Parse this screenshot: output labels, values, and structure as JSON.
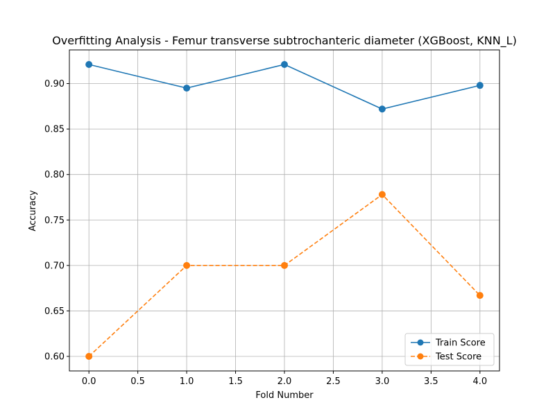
{
  "chart_data": {
    "type": "line",
    "title": "Overfitting Analysis - Femur transverse subtrochanteric diameter (XGBoost, KNN_L)",
    "xlabel": "Fold Number",
    "ylabel": "Accuracy",
    "x": [
      0,
      1,
      2,
      3,
      4
    ],
    "xlim": [
      -0.2,
      4.2
    ],
    "ylim": [
      0.584,
      0.937
    ],
    "xticks": [
      0.0,
      0.5,
      1.0,
      1.5,
      2.0,
      2.5,
      3.0,
      3.5,
      4.0
    ],
    "xtick_labels": [
      "0.0",
      "0.5",
      "1.0",
      "1.5",
      "2.0",
      "2.5",
      "3.0",
      "3.5",
      "4.0"
    ],
    "yticks": [
      0.6,
      0.65,
      0.7,
      0.75,
      0.8,
      0.85,
      0.9
    ],
    "ytick_labels": [
      "0.60",
      "0.65",
      "0.70",
      "0.75",
      "0.80",
      "0.85",
      "0.90"
    ],
    "grid": true,
    "legend_position": "bottom-right",
    "series": [
      {
        "name": "Train Score",
        "values": [
          0.921,
          0.895,
          0.921,
          0.872,
          0.898
        ],
        "color": "#1f77b4",
        "line_style": "solid",
        "marker": "circle"
      },
      {
        "name": "Test Score",
        "values": [
          0.6,
          0.7,
          0.7,
          0.778,
          0.667
        ],
        "color": "#ff7f0e",
        "line_style": "dashed",
        "marker": "circle"
      }
    ]
  }
}
